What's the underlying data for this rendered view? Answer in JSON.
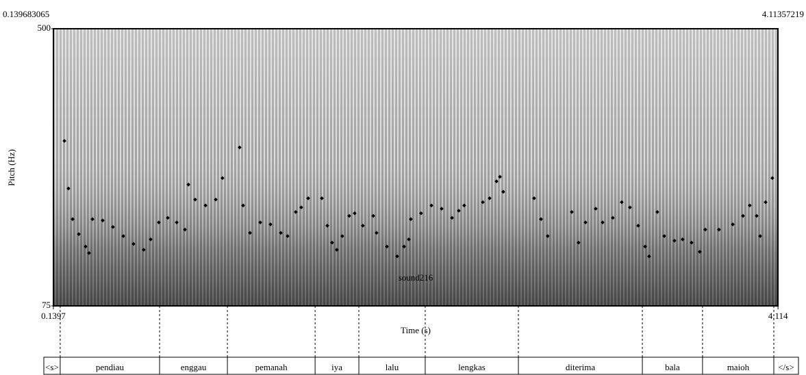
{
  "chart_data": {
    "type": "scatter",
    "name": "sound216",
    "xlabel": "Time (s)",
    "ylabel": "Pitch (Hz)",
    "xlim": [
      0.139683065,
      4.11357219
    ],
    "ylim": [
      75,
      500
    ],
    "xticks": [
      0.1397,
      4.114
    ],
    "yticks": [
      75,
      500
    ],
    "color": "#000000",
    "x": [
      0.2,
      0.222,
      0.245,
      0.279,
      0.316,
      0.335,
      0.354,
      0.41,
      0.466,
      0.523,
      0.579,
      0.635,
      0.673,
      0.718,
      0.767,
      0.816,
      0.861,
      0.88,
      0.917,
      0.974,
      1.03,
      1.067,
      1.161,
      1.18,
      1.218,
      1.274,
      1.33,
      1.387,
      1.424,
      1.469,
      1.499,
      1.537,
      1.612,
      1.642,
      1.668,
      1.694,
      1.724,
      1.762,
      1.792,
      1.837,
      1.894,
      1.912,
      1.969,
      2.025,
      2.063,
      2.089,
      2.1,
      2.156,
      2.213,
      2.269,
      2.326,
      2.363,
      2.393,
      2.495,
      2.532,
      2.57,
      2.589,
      2.607,
      2.776,
      2.814,
      2.851,
      2.983,
      3.02,
      3.058,
      3.114,
      3.152,
      3.208,
      3.257,
      3.302,
      3.347,
      3.385,
      3.407,
      3.452,
      3.49,
      3.546,
      3.591,
      3.64,
      3.685,
      3.715,
      3.79,
      3.866,
      3.922,
      3.959,
      3.997,
      4.016,
      4.046,
      4.083
    ],
    "values": [
      328,
      255,
      208,
      185,
      166,
      156,
      208,
      206,
      196,
      182,
      170,
      161,
      177,
      203,
      210,
      203,
      192,
      261,
      238,
      229,
      238,
      271,
      318,
      229,
      187,
      203,
      200,
      187,
      182,
      219,
      226,
      240,
      240,
      198,
      172,
      161,
      182,
      213,
      217,
      198,
      213,
      187,
      166,
      151,
      166,
      177,
      208,
      217,
      229,
      224,
      210,
      221,
      229,
      234,
      240,
      266,
      273,
      250,
      240,
      208,
      182,
      219,
      172,
      203,
      224,
      203,
      210,
      234,
      226,
      198,
      166,
      151,
      219,
      182,
      175,
      177,
      172,
      158,
      192,
      192,
      200,
      213,
      229,
      213,
      182,
      234,
      271
    ],
    "tier": {
      "boundaries": [
        0.177,
        0.722,
        1.094,
        1.575,
        1.815,
        2.179,
        2.69,
        3.37,
        3.7,
        4.091
      ],
      "labels": [
        "<s>",
        "pendiau",
        "enggau",
        "pemanah",
        "iya",
        "lalu",
        "lengkas",
        "diterima",
        "bala",
        "maioh",
        "</s>"
      ]
    }
  }
}
